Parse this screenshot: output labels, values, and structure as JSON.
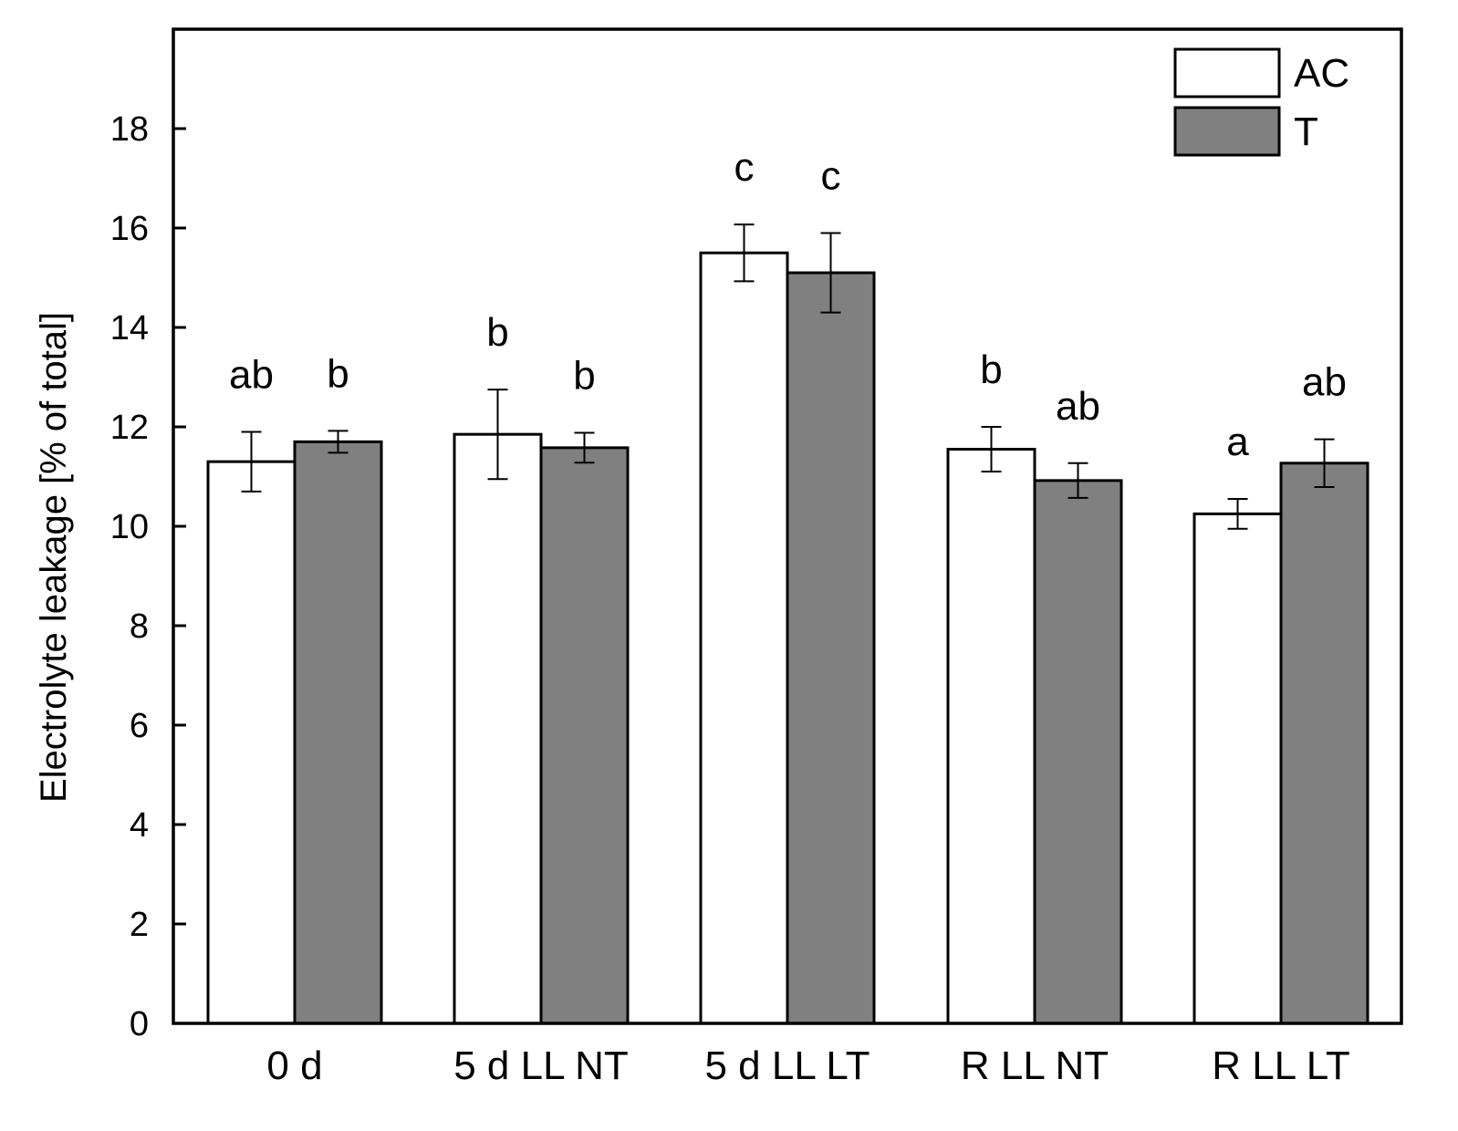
{
  "chart_data": {
    "type": "bar",
    "title": "",
    "xlabel": "",
    "ylabel": "Electrolyte leakage [% of total]",
    "ylim": [
      0,
      20
    ],
    "yticks": [
      0,
      2,
      4,
      6,
      8,
      10,
      12,
      14,
      16,
      18
    ],
    "categories": [
      "0 d",
      "5 d LL NT",
      "5 d LL LT",
      "R LL NT",
      "R LL LT"
    ],
    "series": [
      {
        "name": "AC",
        "color": "#ffffff",
        "values": [
          11.3,
          11.85,
          15.5,
          11.55,
          10.25
        ],
        "errors": [
          0.6,
          0.9,
          0.57,
          0.45,
          0.3
        ],
        "significance": [
          "ab",
          "b",
          "c",
          "b",
          "a"
        ]
      },
      {
        "name": "T",
        "color": "#808080",
        "values": [
          11.7,
          11.58,
          15.1,
          10.92,
          11.27
        ],
        "errors": [
          0.22,
          0.3,
          0.8,
          0.35,
          0.48
        ],
        "significance": [
          "b",
          "b",
          "c",
          "ab",
          "ab"
        ]
      }
    ],
    "legend_position": "top-right",
    "grid": false
  }
}
